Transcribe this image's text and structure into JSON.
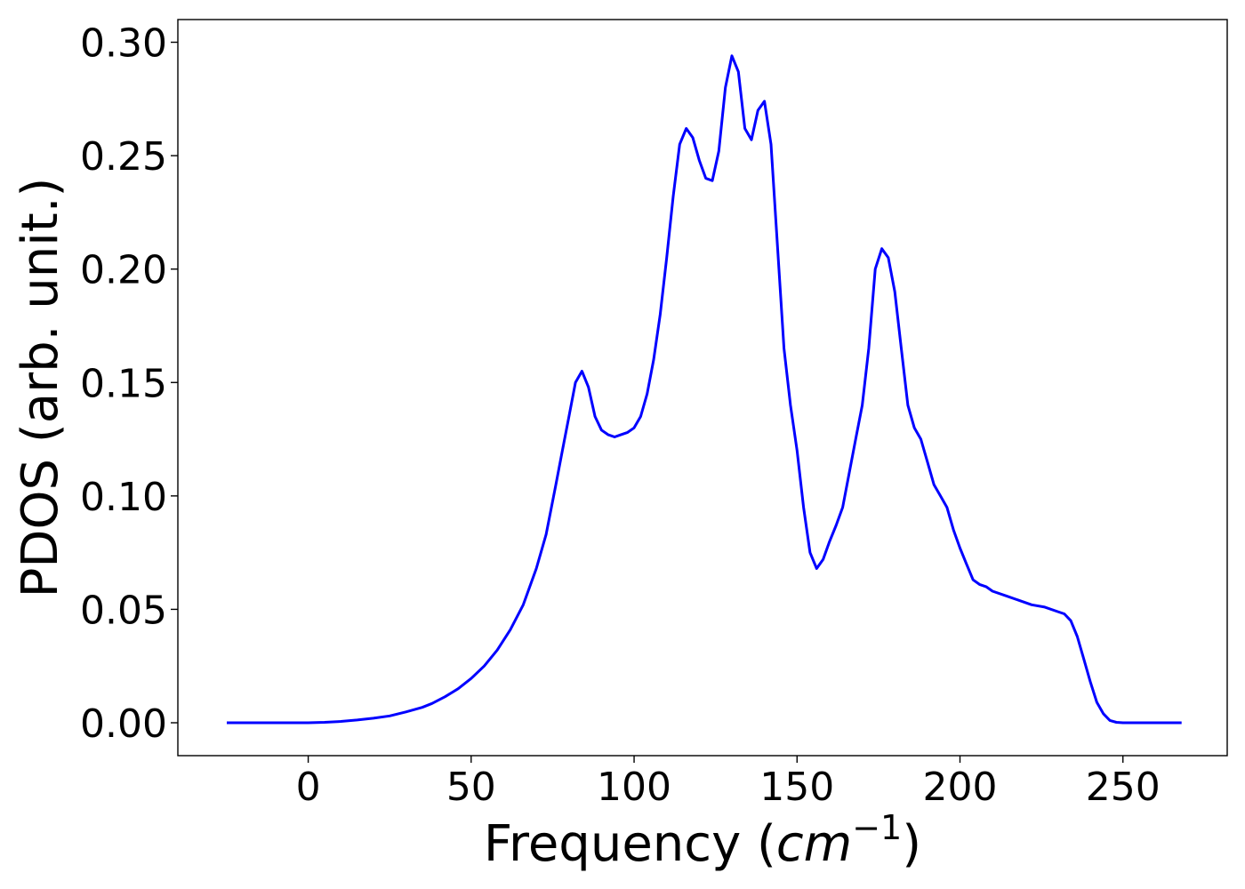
{
  "chart_data": {
    "type": "line",
    "xlabel": "Frequency (",
    "xlabel_unit": "cm",
    "xlabel_exp": "−1",
    "xlabel_close": ")",
    "ylabel": "PDOS (arb. unit.)",
    "xlim": [
      -40,
      282
    ],
    "ylim": [
      -0.0145,
      0.31
    ],
    "xticks": [
      0,
      50,
      100,
      150,
      200,
      250
    ],
    "xtick_labels": [
      "0",
      "50",
      "100",
      "150",
      "200",
      "250"
    ],
    "yticks": [
      0.0,
      0.05,
      0.1,
      0.15,
      0.2,
      0.25,
      0.3
    ],
    "ytick_labels": [
      "0.00",
      "0.05",
      "0.10",
      "0.15",
      "0.20",
      "0.25",
      "0.30"
    ],
    "grid": false,
    "series": [
      {
        "color": "#0000ff",
        "x": [
          -25,
          0,
          5,
          10,
          15,
          20,
          25,
          30,
          35,
          38,
          42,
          46,
          50,
          54,
          58,
          62,
          66,
          70,
          73,
          76,
          78,
          80,
          82,
          84,
          86,
          88,
          90,
          92,
          94,
          96,
          98,
          100,
          102,
          104,
          106,
          108,
          110,
          112,
          114,
          116,
          118,
          120,
          122,
          124,
          126,
          128,
          130,
          132,
          134,
          136,
          138,
          140,
          142,
          144,
          146,
          148,
          150,
          152,
          154,
          156,
          158,
          160,
          162,
          164,
          166,
          168,
          170,
          172,
          174,
          176,
          178,
          180,
          182,
          184,
          186,
          188,
          190,
          192,
          194,
          196,
          198,
          200,
          202,
          204,
          206,
          208,
          210,
          214,
          218,
          222,
          226,
          230,
          232,
          234,
          236,
          238,
          240,
          242,
          244,
          246,
          248,
          250,
          268
        ],
        "y": [
          0.0,
          0.0,
          0.0002,
          0.0006,
          0.0012,
          0.002,
          0.003,
          0.0048,
          0.0068,
          0.0085,
          0.0115,
          0.015,
          0.0195,
          0.025,
          0.032,
          0.041,
          0.052,
          0.068,
          0.083,
          0.105,
          0.12,
          0.135,
          0.15,
          0.155,
          0.148,
          0.135,
          0.129,
          0.127,
          0.126,
          0.127,
          0.128,
          0.13,
          0.135,
          0.145,
          0.16,
          0.18,
          0.205,
          0.232,
          0.255,
          0.262,
          0.258,
          0.248,
          0.24,
          0.239,
          0.252,
          0.28,
          0.294,
          0.287,
          0.262,
          0.257,
          0.27,
          0.274,
          0.255,
          0.21,
          0.165,
          0.14,
          0.12,
          0.095,
          0.075,
          0.068,
          0.072,
          0.08,
          0.087,
          0.095,
          0.11,
          0.125,
          0.14,
          0.165,
          0.2,
          0.209,
          0.205,
          0.19,
          0.165,
          0.14,
          0.13,
          0.125,
          0.115,
          0.105,
          0.1,
          0.095,
          0.085,
          0.077,
          0.07,
          0.063,
          0.061,
          0.06,
          0.058,
          0.056,
          0.054,
          0.052,
          0.051,
          0.049,
          0.048,
          0.045,
          0.038,
          0.028,
          0.018,
          0.009,
          0.004,
          0.001,
          0.0002,
          0.0,
          0.0
        ]
      }
    ]
  }
}
